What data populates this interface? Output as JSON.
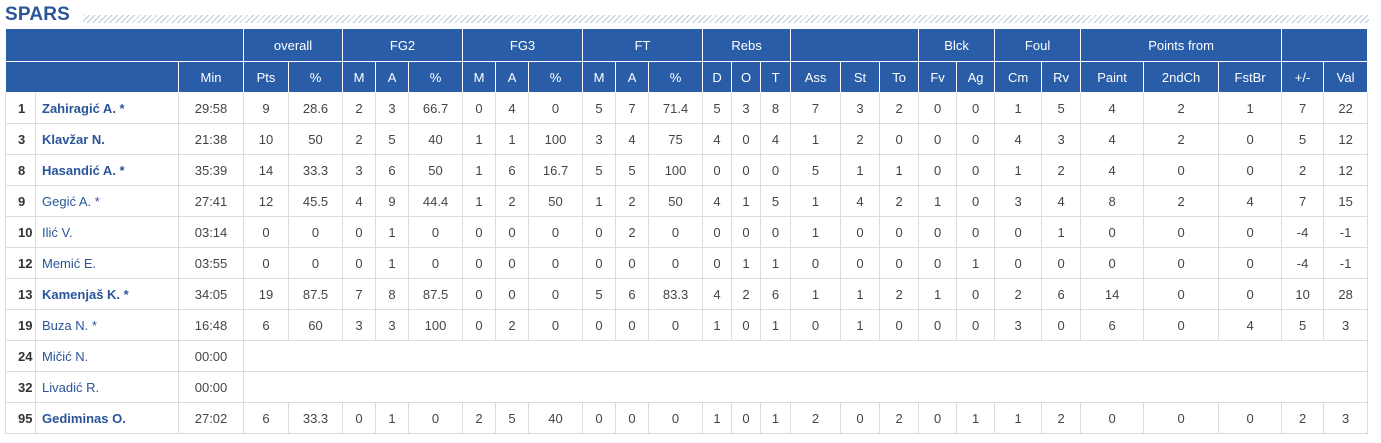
{
  "team": {
    "name": "SPARS"
  },
  "groups": {
    "overall": "overall",
    "fg2": "FG2",
    "fg3": "FG3",
    "ft": "FT",
    "rebs": "Rebs",
    "blck": "Blck",
    "foul": "Foul",
    "points_from": "Points from"
  },
  "columns": [
    "Min",
    "Pts",
    "%",
    "M",
    "A",
    "%",
    "M",
    "A",
    "%",
    "M",
    "A",
    "%",
    "D",
    "O",
    "T",
    "Ass",
    "St",
    "To",
    "Fv",
    "Ag",
    "Cm",
    "Rv",
    "Paint",
    "2ndCh",
    "FstBr",
    "+/-",
    "Val"
  ],
  "players": [
    {
      "num": "1",
      "name": "Zahiragić A. *",
      "starter": true,
      "stats": [
        "29:58",
        "9",
        "28.6",
        "2",
        "3",
        "66.7",
        "0",
        "4",
        "0",
        "5",
        "7",
        "71.4",
        "5",
        "3",
        "8",
        "7",
        "3",
        "2",
        "0",
        "0",
        "1",
        "5",
        "4",
        "2",
        "1",
        "7",
        "22"
      ]
    },
    {
      "num": "3",
      "name": "Klavžar N.",
      "starter": true,
      "stats": [
        "21:38",
        "10",
        "50",
        "2",
        "5",
        "40",
        "1",
        "1",
        "100",
        "3",
        "4",
        "75",
        "4",
        "0",
        "4",
        "1",
        "2",
        "0",
        "0",
        "0",
        "4",
        "3",
        "4",
        "2",
        "0",
        "5",
        "12"
      ]
    },
    {
      "num": "8",
      "name": "Hasandić A. *",
      "starter": true,
      "stats": [
        "35:39",
        "14",
        "33.3",
        "3",
        "6",
        "50",
        "1",
        "6",
        "16.7",
        "5",
        "5",
        "100",
        "0",
        "0",
        "0",
        "5",
        "1",
        "1",
        "0",
        "0",
        "1",
        "2",
        "4",
        "0",
        "0",
        "2",
        "12"
      ]
    },
    {
      "num": "9",
      "name": "Gegić A. *",
      "starter": false,
      "stats": [
        "27:41",
        "12",
        "45.5",
        "4",
        "9",
        "44.4",
        "1",
        "2",
        "50",
        "1",
        "2",
        "50",
        "4",
        "1",
        "5",
        "1",
        "4",
        "2",
        "1",
        "0",
        "3",
        "4",
        "8",
        "2",
        "4",
        "7",
        "15"
      ]
    },
    {
      "num": "10",
      "name": "Ilić V.",
      "starter": false,
      "stats": [
        "03:14",
        "0",
        "0",
        "0",
        "1",
        "0",
        "0",
        "0",
        "0",
        "0",
        "2",
        "0",
        "0",
        "0",
        "0",
        "1",
        "0",
        "0",
        "0",
        "0",
        "0",
        "1",
        "0",
        "0",
        "0",
        "-4",
        "-1"
      ]
    },
    {
      "num": "12",
      "name": "Memić E.",
      "starter": false,
      "stats": [
        "03:55",
        "0",
        "0",
        "0",
        "1",
        "0",
        "0",
        "0",
        "0",
        "0",
        "0",
        "0",
        "0",
        "1",
        "1",
        "0",
        "0",
        "0",
        "0",
        "1",
        "0",
        "0",
        "0",
        "0",
        "0",
        "-4",
        "-1"
      ]
    },
    {
      "num": "13",
      "name": "Kamenjaš K. *",
      "starter": true,
      "stats": [
        "34:05",
        "19",
        "87.5",
        "7",
        "8",
        "87.5",
        "0",
        "0",
        "0",
        "5",
        "6",
        "83.3",
        "4",
        "2",
        "6",
        "1",
        "1",
        "2",
        "1",
        "0",
        "2",
        "6",
        "14",
        "0",
        "0",
        "10",
        "28"
      ]
    },
    {
      "num": "19",
      "name": "Buza N. *",
      "starter": false,
      "stats": [
        "16:48",
        "6",
        "60",
        "3",
        "3",
        "100",
        "0",
        "2",
        "0",
        "0",
        "0",
        "0",
        "1",
        "0",
        "1",
        "0",
        "1",
        "0",
        "0",
        "0",
        "3",
        "0",
        "6",
        "0",
        "4",
        "5",
        "3"
      ]
    },
    {
      "num": "24",
      "name": "Mičić N.",
      "starter": false,
      "stats": [
        "00:00"
      ]
    },
    {
      "num": "32",
      "name": "Livadić R.",
      "starter": false,
      "stats": [
        "00:00"
      ]
    },
    {
      "num": "95",
      "name": "Gediminas O.",
      "starter": true,
      "stats": [
        "27:02",
        "6",
        "33.3",
        "0",
        "1",
        "0",
        "2",
        "5",
        "40",
        "0",
        "0",
        "0",
        "1",
        "0",
        "1",
        "2",
        "0",
        "2",
        "0",
        "1",
        "1",
        "2",
        "0",
        "0",
        "0",
        "2",
        "3"
      ]
    }
  ]
}
